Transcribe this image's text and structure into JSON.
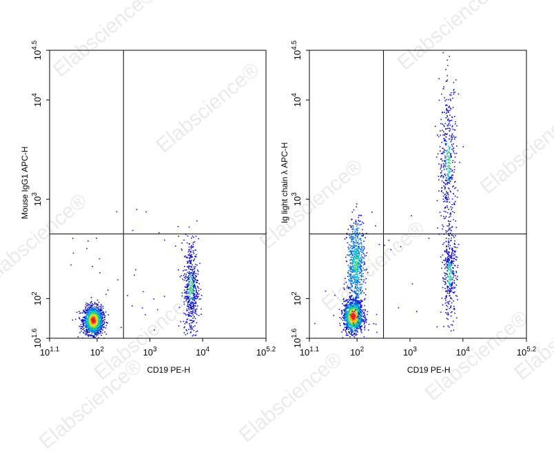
{
  "watermark": "Elabscience®",
  "chart_data": [
    {
      "type": "scatter",
      "xlabel": "CD19 PE-H",
      "ylabel": "Mouse IgG1 APC-H",
      "x_scale": "log",
      "y_scale": "log",
      "xlim": [
        1.1,
        5.2
      ],
      "ylim": [
        1.6,
        4.5
      ],
      "x_ticks": [
        {
          "base": "10",
          "exp": "1.1",
          "value": 1.1
        },
        {
          "base": "10",
          "exp": "2",
          "value": 2
        },
        {
          "base": "10",
          "exp": "3",
          "value": 3
        },
        {
          "base": "10",
          "exp": "4",
          "value": 4
        },
        {
          "base": "10",
          "exp": "5.2",
          "value": 5.2
        }
      ],
      "y_ticks": [
        {
          "base": "10",
          "exp": "1.6",
          "value": 1.6
        },
        {
          "base": "10",
          "exp": "2",
          "value": 2
        },
        {
          "base": "10",
          "exp": "3",
          "value": 3
        },
        {
          "base": "10",
          "exp": "4",
          "value": 4
        },
        {
          "base": "10",
          "exp": "4.5",
          "value": 4.5
        }
      ],
      "quadrant_gate": {
        "x": 2.5,
        "y": 2.65
      },
      "populations": [
        {
          "cx": 1.93,
          "cy": 1.78,
          "sx": 0.09,
          "sy": 0.07,
          "count": 1500
        },
        {
          "cx": 3.78,
          "cy": 2.1,
          "sx": 0.07,
          "sy": 0.25,
          "count": 520
        }
      ],
      "density_colors": [
        "#1010c8",
        "#0070e0",
        "#00b8d0",
        "#3cd070",
        "#d8e030",
        "#f0a020",
        "#e82020"
      ]
    },
    {
      "type": "scatter",
      "xlabel": "CD19 PE-H",
      "ylabel": "Ig light chain λ APC-H",
      "x_scale": "log",
      "y_scale": "log",
      "xlim": [
        1.1,
        5.2
      ],
      "ylim": [
        1.6,
        4.5
      ],
      "x_ticks": [
        {
          "base": "10",
          "exp": "1.1",
          "value": 1.1
        },
        {
          "base": "10",
          "exp": "2",
          "value": 2
        },
        {
          "base": "10",
          "exp": "3",
          "value": 3
        },
        {
          "base": "10",
          "exp": "4",
          "value": 4
        },
        {
          "base": "10",
          "exp": "5.2",
          "value": 5.2
        }
      ],
      "y_ticks": [
        {
          "base": "10",
          "exp": "1.6",
          "value": 1.6
        },
        {
          "base": "10",
          "exp": "2",
          "value": 2
        },
        {
          "base": "10",
          "exp": "3",
          "value": 3
        },
        {
          "base": "10",
          "exp": "4",
          "value": 4
        },
        {
          "base": "10",
          "exp": "4.5",
          "value": 4.5
        }
      ],
      "quadrant_gate": {
        "x": 2.5,
        "y": 2.65
      },
      "populations": [
        {
          "cx": 1.93,
          "cy": 1.82,
          "sx": 0.09,
          "sy": 0.08,
          "count": 1300
        },
        {
          "cx": 1.98,
          "cy": 2.35,
          "sx": 0.08,
          "sy": 0.22,
          "count": 650
        },
        {
          "cx": 3.75,
          "cy": 2.25,
          "sx": 0.07,
          "sy": 0.22,
          "count": 350
        },
        {
          "cx": 3.72,
          "cy": 3.4,
          "sx": 0.08,
          "sy": 0.38,
          "count": 420
        }
      ],
      "density_colors": [
        "#1010c8",
        "#0070e0",
        "#00b8d0",
        "#3cd070",
        "#d8e030",
        "#f0a020",
        "#e82020"
      ]
    }
  ]
}
